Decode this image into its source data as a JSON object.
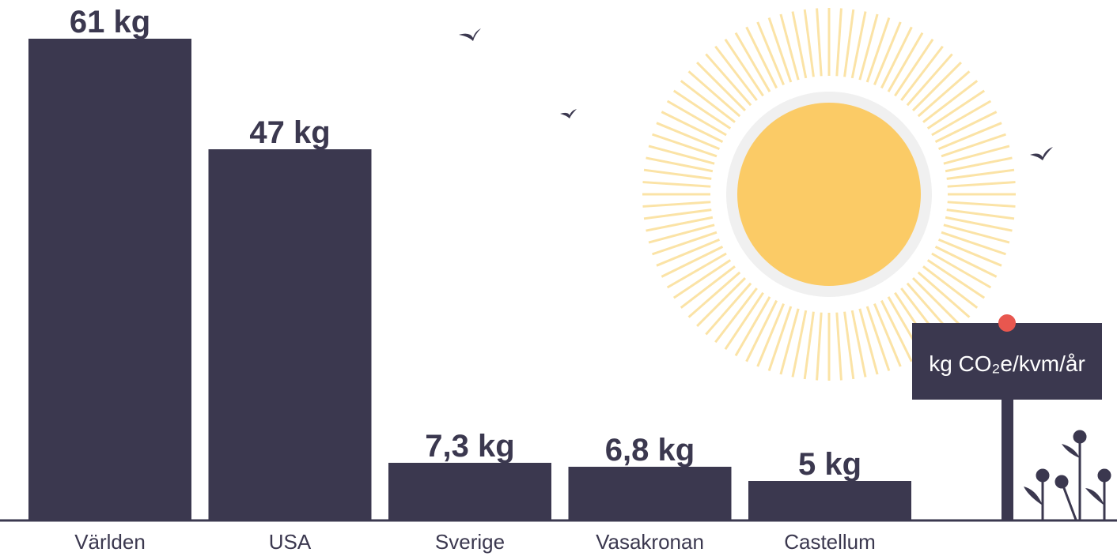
{
  "chart_data": {
    "type": "bar",
    "categories": [
      "Världen",
      "USA",
      "Sverige",
      "Vasakronan",
      "Castellum"
    ],
    "values": [
      61,
      47,
      7.3,
      6.8,
      5
    ],
    "value_labels": [
      "61 kg",
      "47 kg",
      "7,3 kg",
      "6,8 kg",
      "5 kg"
    ],
    "color": "#3b384f",
    "sign": "kg CO₂e/kvm/år"
  }
}
